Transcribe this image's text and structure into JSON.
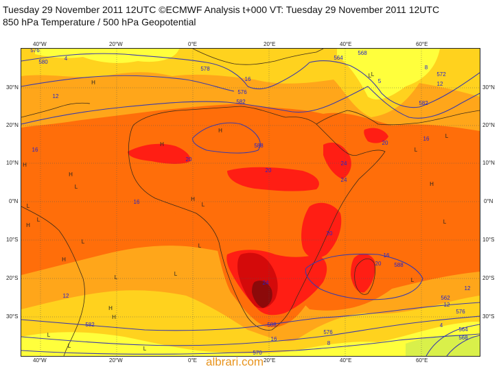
{
  "title_line1": "Tuesday 29 November 2011 12UTC ©ECMWF Analysis t+000 VT: Tuesday 29 November 2011 12UTC",
  "title_line2": "850 hPa Temperature / 500 hPa Geopotential",
  "lon_labels": [
    "40°W",
    "20°W",
    "0°E",
    "20°E",
    "40°E",
    "60°E"
  ],
  "lat_labels": [
    "30°N",
    "20°N",
    "10°N",
    "0°N",
    "10°S",
    "20°S",
    "30°S"
  ],
  "colors": {
    "cold": "#ffff3c",
    "cool": "#ffd21e",
    "mild": "#ffa61a",
    "warm": "#ff6e0a",
    "hot": "#ff1e14",
    "vhot": "#d40a0a",
    "extreme": "#8c0a0a",
    "contour": "#3a3aaa",
    "coast": "#3a2a1a"
  },
  "contour_labels": [
    "576",
    "4",
    "580",
    "578",
    "16",
    "12",
    "564",
    "568",
    "8",
    "572",
    "5",
    "20",
    "24",
    "16",
    "12",
    "20",
    "24",
    "20",
    "16",
    "588",
    "588",
    "582",
    "582",
    "576",
    "20",
    "16",
    "24",
    "20",
    "588",
    "12",
    "16",
    "8",
    "562",
    "576",
    "12",
    "576",
    "4",
    "564",
    "570",
    "568",
    "582",
    "16",
    "12"
  ],
  "pressure_letters": [
    "H",
    "L",
    "H",
    "H",
    "L",
    "H",
    "H",
    "L",
    "H",
    "L",
    "L",
    "L",
    "H",
    "L",
    "L",
    "H",
    "L",
    "H",
    "H",
    "L",
    "L",
    "L",
    "L",
    "L",
    "L",
    "L",
    "H",
    "L"
  ],
  "footer": "albrari.com"
}
